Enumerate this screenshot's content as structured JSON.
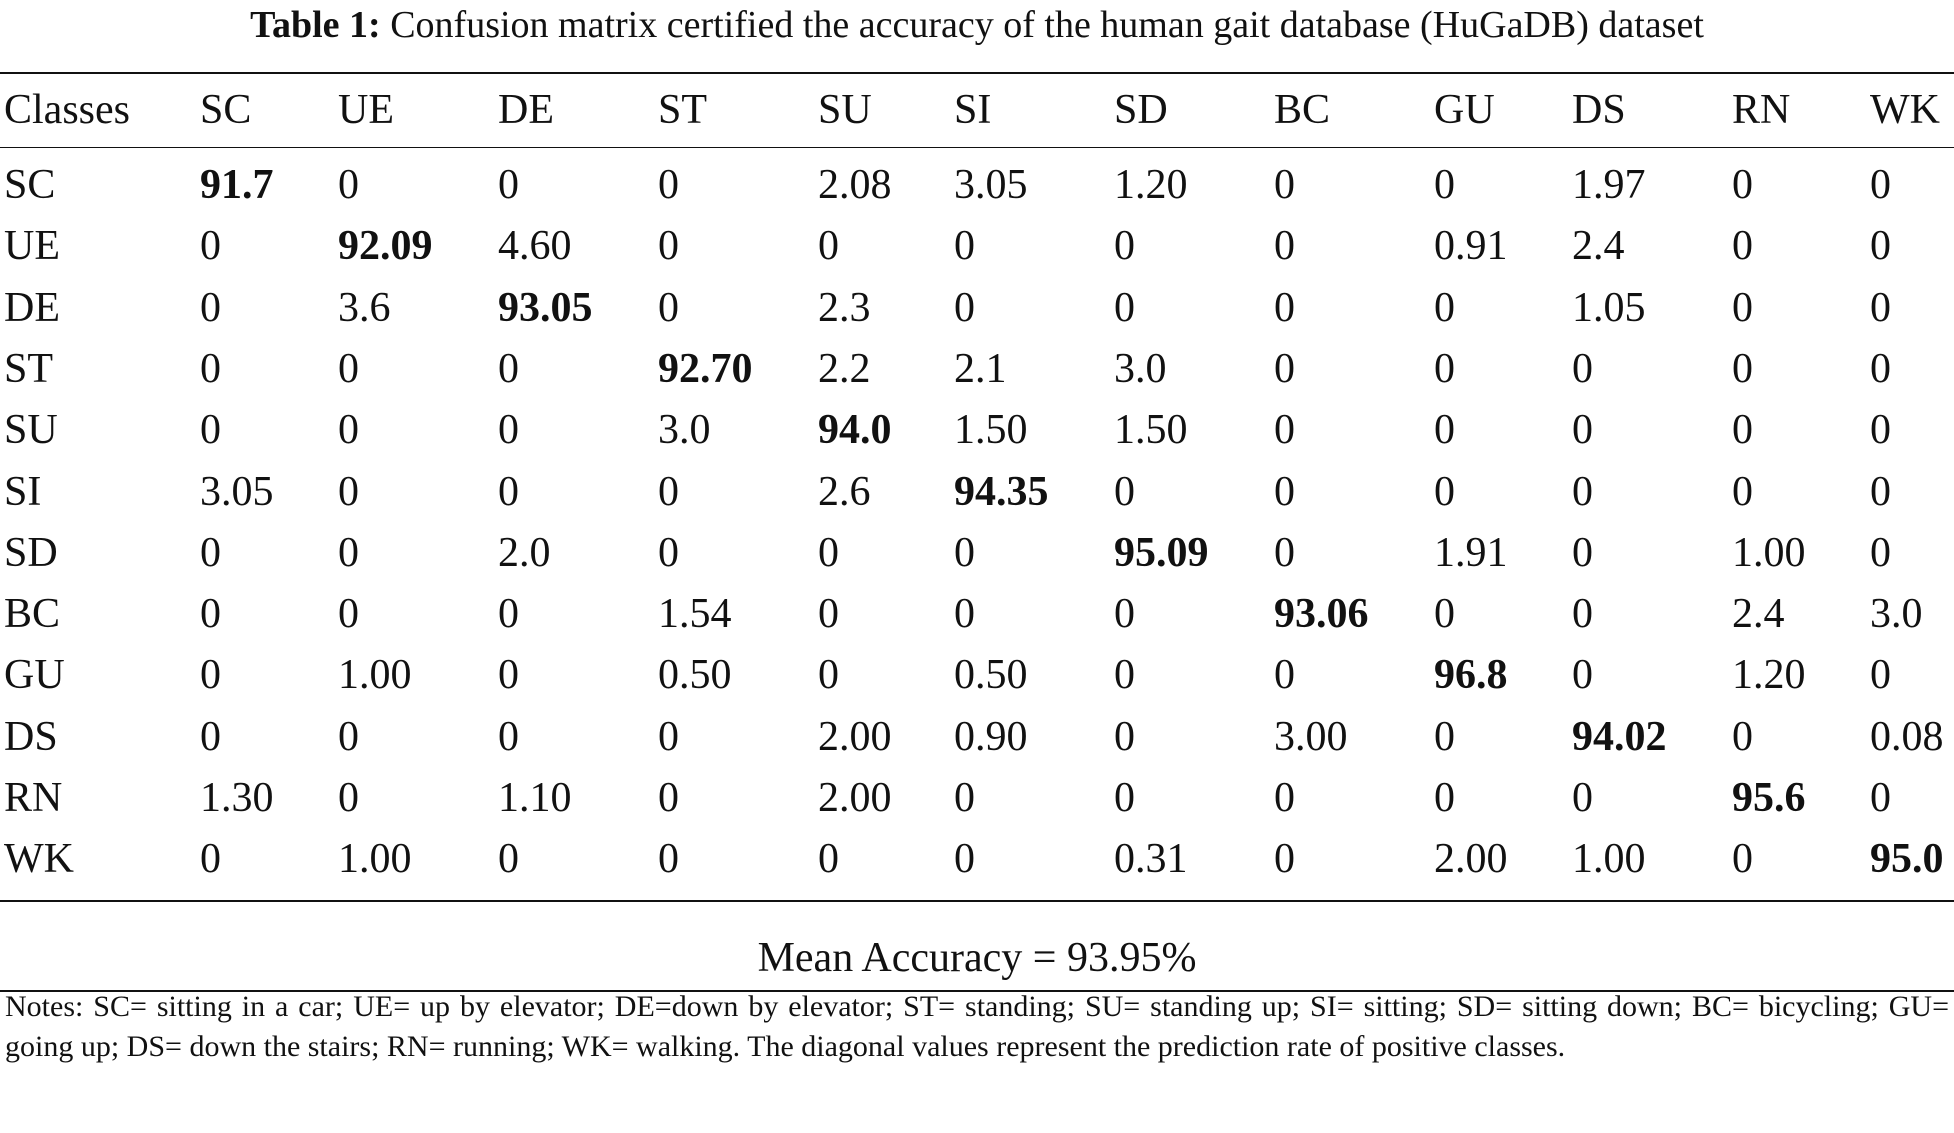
{
  "caption": {
    "label": "Table 1:",
    "text": "Confusion matrix certified the accuracy of the human gait database (HuGaDB) dataset"
  },
  "table": {
    "headers": [
      "Classes",
      "SC",
      "UE",
      "DE",
      "ST",
      "SU",
      "SI",
      "SD",
      "BC",
      "GU",
      "DS",
      "RN",
      "WK"
    ],
    "rows": [
      [
        "SC",
        "91.7",
        "0",
        "0",
        "0",
        "2.08",
        "3.05",
        "1.20",
        "0",
        "0",
        "1.97",
        "0",
        "0"
      ],
      [
        "UE",
        "0",
        "92.09",
        "4.60",
        "0",
        "0",
        "0",
        "0",
        "0",
        "0.91",
        "2.4",
        "0",
        "0"
      ],
      [
        "DE",
        "0",
        "3.6",
        "93.05",
        "0",
        "2.3",
        "0",
        "0",
        "0",
        "0",
        "1.05",
        "0",
        "0"
      ],
      [
        "ST",
        "0",
        "0",
        "0",
        "92.70",
        "2.2",
        "2.1",
        "3.0",
        "0",
        "0",
        "0",
        "0",
        "0"
      ],
      [
        "SU",
        "0",
        "0",
        "0",
        "3.0",
        "94.0",
        "1.50",
        "1.50",
        "0",
        "0",
        "0",
        "0",
        "0"
      ],
      [
        "SI",
        "3.05",
        "0",
        "0",
        "0",
        "2.6",
        "94.35",
        "0",
        "0",
        "0",
        "0",
        "0",
        "0"
      ],
      [
        "SD",
        "0",
        "0",
        "2.0",
        "0",
        "0",
        "0",
        "95.09",
        "0",
        "1.91",
        "0",
        "1.00",
        "0"
      ],
      [
        "BC",
        "0",
        "0",
        "0",
        "1.54",
        "0",
        "0",
        "0",
        "93.06",
        "0",
        "0",
        "2.4",
        "3.0"
      ],
      [
        "GU",
        "0",
        "1.00",
        "0",
        "0.50",
        "0",
        "0.50",
        "0",
        "0",
        "96.8",
        "0",
        "1.20",
        "0"
      ],
      [
        "DS",
        "0",
        "0",
        "0",
        "0",
        "2.00",
        "0.90",
        "0",
        "3.00",
        "0",
        "94.02",
        "0",
        "0.08"
      ],
      [
        "RN",
        "1.30",
        "0",
        "1.10",
        "0",
        "2.00",
        "0",
        "0",
        "0",
        "0",
        "0",
        "95.6",
        "0"
      ],
      [
        "WK",
        "0",
        "1.00",
        "0",
        "0",
        "0",
        "0",
        "0.31",
        "0",
        "2.00",
        "1.00",
        "0",
        "95.0"
      ]
    ]
  },
  "mean_accuracy": "Mean Accuracy = 93.95%",
  "notes": "Notes: SC= sitting in a car; UE= up by elevator; DE=down by elevator; ST= standing; SU= standing up; SI= sitting; SD= sitting down; BC= bicycling; GU= going up; DS= down the stairs; RN= running; WK= walking. The diagonal values represent the prediction rate of positive classes."
}
